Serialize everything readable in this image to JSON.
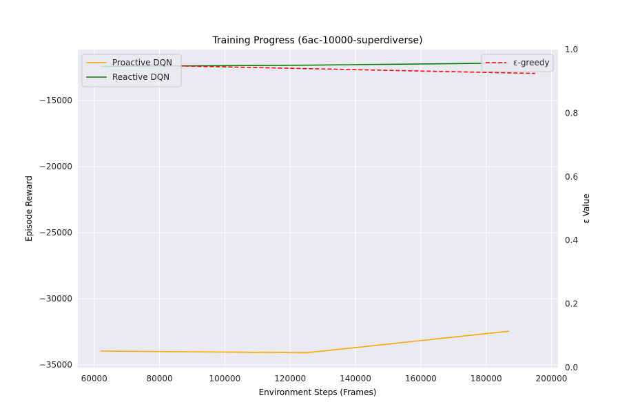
{
  "chart_data": {
    "type": "line",
    "title": "Training Progress (6ac-10000-superdiverse)",
    "xlabel": "Environment Steps (Frames)",
    "ylabel": "Episode Reward",
    "y2label": "ε Value",
    "xlim": [
      55000,
      202000
    ],
    "ylim": [
      -35200,
      -11150
    ],
    "y2lim": [
      0.0,
      1.0
    ],
    "x_ticks": [
      60000,
      80000,
      100000,
      120000,
      140000,
      160000,
      180000,
      200000
    ],
    "y_ticks": [
      -35000,
      -30000,
      -25000,
      -20000,
      -15000
    ],
    "y2_ticks": [
      0.0,
      0.2,
      0.4,
      0.6,
      0.8,
      1.0
    ],
    "grid": true,
    "series": [
      {
        "name": "Proactive DQN",
        "axis": "left",
        "color": "#ffa500",
        "style": "solid",
        "x": [
          62000,
          125000,
          187000
        ],
        "y": [
          -33950,
          -34080,
          -32450
        ]
      },
      {
        "name": "Reactive DQN",
        "axis": "left",
        "color": "#008000",
        "style": "solid",
        "x": [
          62000,
          125000,
          187000
        ],
        "y": [
          -12420,
          -12330,
          -12170
        ]
      },
      {
        "name": "ε-greedy",
        "axis": "right",
        "color": "#ff0000",
        "style": "dashed",
        "x": [
          65000,
          195000
        ],
        "y": [
          0.953,
          0.925
        ]
      }
    ],
    "legend_left": {
      "placement": "top-left",
      "entries": [
        "Proactive DQN",
        "Reactive DQN"
      ]
    },
    "legend_right": {
      "placement": "top-right",
      "entries": [
        "ε-greedy"
      ]
    }
  },
  "colors": {
    "plot_background": "#eaeaf2",
    "grid": "#ffffff",
    "y2label": "#ff0000"
  }
}
